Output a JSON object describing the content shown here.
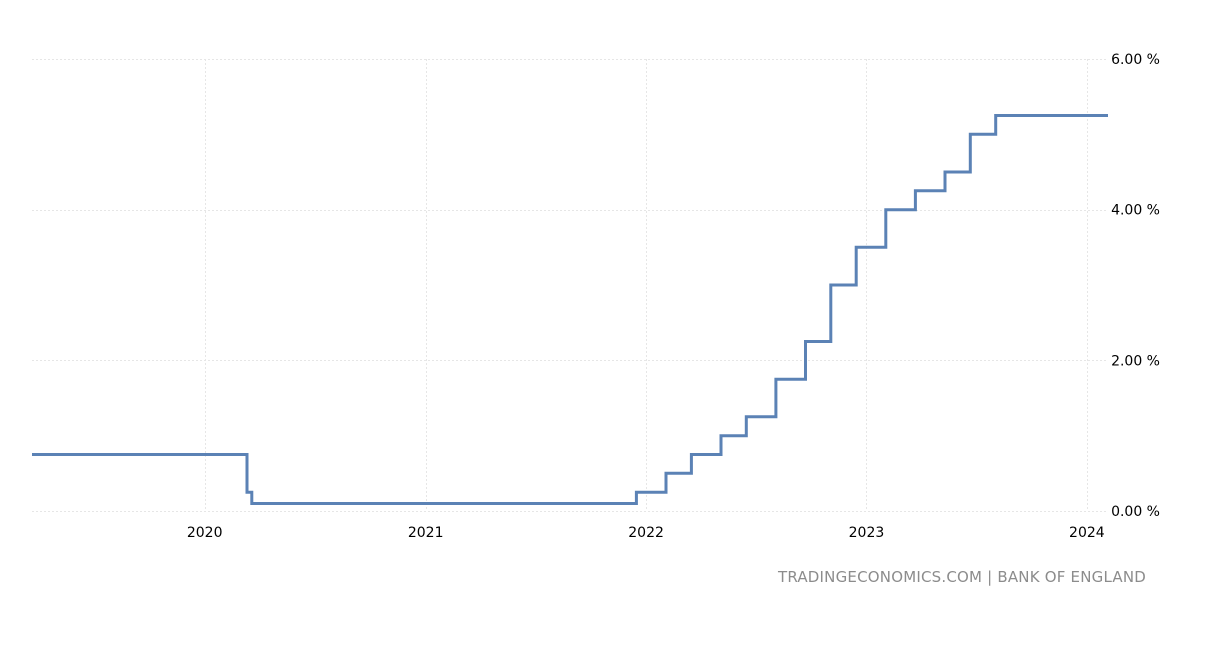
{
  "colors": {
    "series": "#5b82b5",
    "grid": "#e6e6e6",
    "tick_text": "#000000",
    "source_text": "#8c8c8c"
  },
  "source": "TRADINGECONOMICS.COM | BANK OF ENGLAND",
  "chart_data": {
    "type": "line",
    "step": true,
    "grid": true,
    "x_axis": {
      "type": "date",
      "range": [
        "2019-03-21",
        "2024-02-05"
      ],
      "ticks": [
        "2020",
        "2021",
        "2022",
        "2023",
        "2024"
      ]
    },
    "y_axis": {
      "range": [
        0,
        6
      ],
      "ticks": [
        {
          "value": 0,
          "label": "0.00 %"
        },
        {
          "value": 2,
          "label": "2.00 %"
        },
        {
          "value": 4,
          "label": "4.00 %"
        },
        {
          "value": 6,
          "label": "6.00 %"
        }
      ]
    },
    "series": [
      {
        "points": [
          {
            "x": "2019-03-21",
            "y": 0.75
          },
          {
            "x": "2020-03-11",
            "y": 0.25
          },
          {
            "x": "2020-03-19",
            "y": 0.1
          },
          {
            "x": "2021-12-16",
            "y": 0.25
          },
          {
            "x": "2022-02-03",
            "y": 0.5
          },
          {
            "x": "2022-03-17",
            "y": 0.75
          },
          {
            "x": "2022-05-05",
            "y": 1.0
          },
          {
            "x": "2022-06-16",
            "y": 1.25
          },
          {
            "x": "2022-08-04",
            "y": 1.75
          },
          {
            "x": "2022-09-22",
            "y": 2.25
          },
          {
            "x": "2022-11-03",
            "y": 3.0
          },
          {
            "x": "2022-12-15",
            "y": 3.5
          },
          {
            "x": "2023-02-02",
            "y": 4.0
          },
          {
            "x": "2023-03-23",
            "y": 4.25
          },
          {
            "x": "2023-05-11",
            "y": 4.5
          },
          {
            "x": "2023-06-22",
            "y": 5.0
          },
          {
            "x": "2023-08-03",
            "y": 5.25
          },
          {
            "x": "2024-02-05",
            "y": 5.25
          }
        ]
      }
    ]
  }
}
